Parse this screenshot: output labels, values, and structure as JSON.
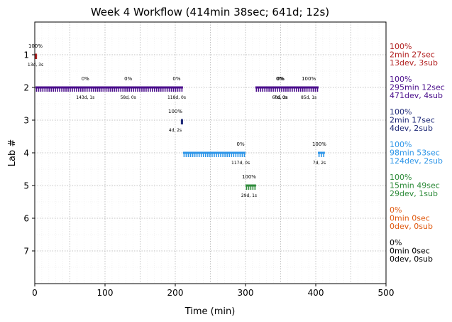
{
  "chart_data": {
    "type": "scatter",
    "title": "Week 4 Workflow (414min 38sec; 641d; 12s)",
    "xlabel": "Time (min)",
    "ylabel": "Lab #",
    "xlim": [
      0,
      500
    ],
    "ylim": [
      8,
      0
    ],
    "x_ticks": [
      0,
      100,
      200,
      300,
      400,
      500
    ],
    "y_ticks": [
      1,
      2,
      3,
      4,
      5,
      6,
      7
    ],
    "grid": true,
    "labs": [
      {
        "lab": 1,
        "color": "#b22222",
        "summary": [
          "100%",
          "2min 27sec",
          "13dev, 3sub"
        ],
        "segments": [
          [
            0.5,
            3
          ]
        ],
        "annotations": [
          {
            "x": 1,
            "pct": "100%",
            "counts": "13d, 3s"
          }
        ]
      },
      {
        "lab": 2,
        "color": "#4b0f8c",
        "summary": [
          "100%",
          "295min 12sec",
          "471dev, 4sub"
        ],
        "segments": [
          [
            1,
            211
          ],
          [
            314,
            404
          ]
        ],
        "annotations": [
          {
            "x": 72,
            "pct": "0%",
            "counts": "143d, 1s"
          },
          {
            "x": 133,
            "pct": "0%",
            "counts": "58d, 0s"
          },
          {
            "x": 202,
            "pct": "0%",
            "counts": "118d, 0s"
          },
          {
            "x": 349,
            "pct": "0%",
            "counts": "60d, 2s"
          },
          {
            "x": 350,
            "pct": "0%",
            "counts": "7d, 0s"
          },
          {
            "x": 390,
            "pct": "100%",
            "counts": "85d, 1s"
          }
        ]
      },
      {
        "lab": 3,
        "color": "#1f2a78",
        "summary": [
          "100%",
          "2min 17sec",
          "4dev, 2sub"
        ],
        "segments": [
          [
            208,
            211
          ]
        ],
        "annotations": [
          {
            "x": 200,
            "pct": "100%",
            "counts": "4d, 2s"
          }
        ]
      },
      {
        "lab": 4,
        "color": "#2f96e8",
        "summary": [
          "100%",
          "98min 53sec",
          "124dev, 2sub"
        ],
        "segments": [
          [
            211,
            300
          ],
          [
            403,
            413
          ]
        ],
        "annotations": [
          {
            "x": 293,
            "pct": "0%",
            "counts": "117d, 0s"
          },
          {
            "x": 405,
            "pct": "100%",
            "counts": "7d, 2s"
          }
        ]
      },
      {
        "lab": 5,
        "color": "#2e8b3a",
        "summary": [
          "100%",
          "15min 49sec",
          "29dev, 1sub"
        ],
        "segments": [
          [
            300,
            315
          ]
        ],
        "annotations": [
          {
            "x": 305,
            "pct": "100%",
            "counts": "29d, 1s"
          }
        ]
      },
      {
        "lab": 6,
        "color": "#e05a10",
        "summary": [
          "0%",
          "0min 0sec",
          "0dev, 0sub"
        ],
        "segments": [],
        "annotations": []
      },
      {
        "lab": 7,
        "color": "#000000",
        "summary": [
          "0%",
          "0min 0sec",
          "0dev, 0sub"
        ],
        "segments": [],
        "annotations": []
      }
    ]
  }
}
